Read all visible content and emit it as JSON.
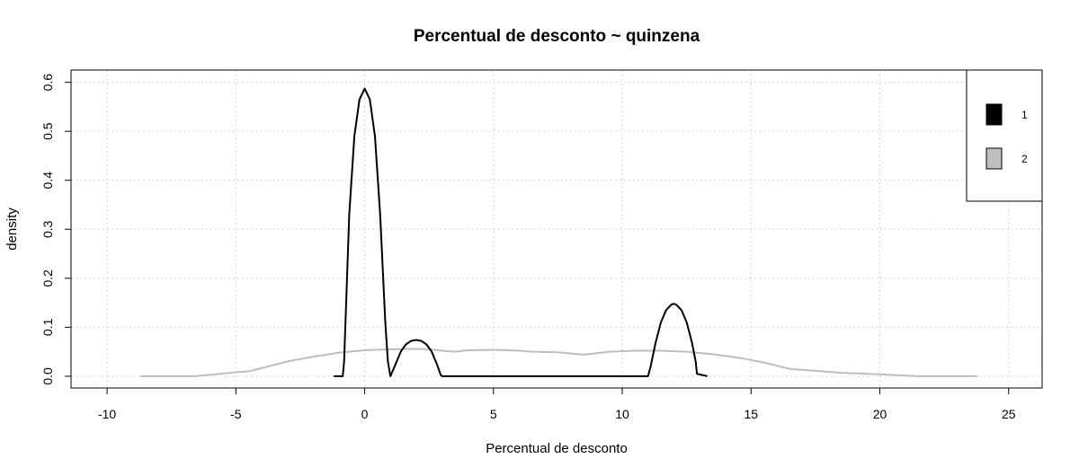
{
  "chart_data": {
    "type": "line",
    "title": "Percentual de desconto ~ quinzena",
    "xlabel": "Percentual de desconto",
    "ylabel": "density",
    "xlim": [
      -11.4,
      26.3
    ],
    "ylim": [
      -0.024,
      0.625
    ],
    "xticks": [
      "-10",
      "-5",
      "0",
      "5",
      "10",
      "15",
      "20",
      "25"
    ],
    "yticks": [
      "0.0",
      "0.1",
      "0.2",
      "0.3",
      "0.4",
      "0.5",
      "0.6"
    ],
    "grid": true,
    "legend_position": "top-right",
    "series": [
      {
        "name": "1",
        "color": "#000000",
        "x": [
          -1.2,
          -0.85,
          -0.8,
          -0.6,
          -0.4,
          -0.2,
          0,
          0.2,
          0.4,
          0.6,
          0.8,
          0.9,
          1.0,
          1.2,
          1.4,
          1.6,
          1.8,
          2.0,
          2.2,
          2.4,
          2.6,
          2.8,
          2.95,
          3.0,
          5,
          8,
          10,
          11.0,
          11.1,
          11.3,
          11.5,
          11.7,
          11.9,
          12.0,
          12.1,
          12.3,
          12.5,
          12.7,
          12.85,
          12.9,
          13.3
        ],
        "y": [
          0.0,
          0.0,
          0.03,
          0.33,
          0.49,
          0.565,
          0.587,
          0.565,
          0.49,
          0.33,
          0.11,
          0.03,
          0.0,
          0.025,
          0.05,
          0.065,
          0.072,
          0.074,
          0.072,
          0.065,
          0.05,
          0.025,
          0.003,
          0.0,
          0.0,
          0.0,
          0.0,
          0.0,
          0.02,
          0.07,
          0.11,
          0.135,
          0.146,
          0.148,
          0.146,
          0.135,
          0.11,
          0.07,
          0.03,
          0.005,
          0.0
        ]
      },
      {
        "name": "2",
        "color": "#bebebe",
        "x": [
          -8.7,
          -7,
          -6.6,
          -5,
          -4.5,
          -3,
          -2,
          -1,
          0,
          1,
          2,
          2.5,
          3,
          3.5,
          4,
          5,
          6,
          6.5,
          7.5,
          8.5,
          9.5,
          10.5,
          11.5,
          12.5,
          13.5,
          14.5,
          15.5,
          16.5,
          17,
          18.5,
          20,
          21.5,
          22.5,
          23.8
        ],
        "y": [
          0.0,
          0.0,
          0.0,
          0.008,
          0.01,
          0.03,
          0.04,
          0.048,
          0.053,
          0.055,
          0.056,
          0.055,
          0.052,
          0.05,
          0.053,
          0.054,
          0.052,
          0.05,
          0.049,
          0.044,
          0.05,
          0.052,
          0.052,
          0.05,
          0.045,
          0.038,
          0.028,
          0.015,
          0.013,
          0.007,
          0.004,
          0.0,
          0.0,
          0.0
        ]
      }
    ]
  }
}
